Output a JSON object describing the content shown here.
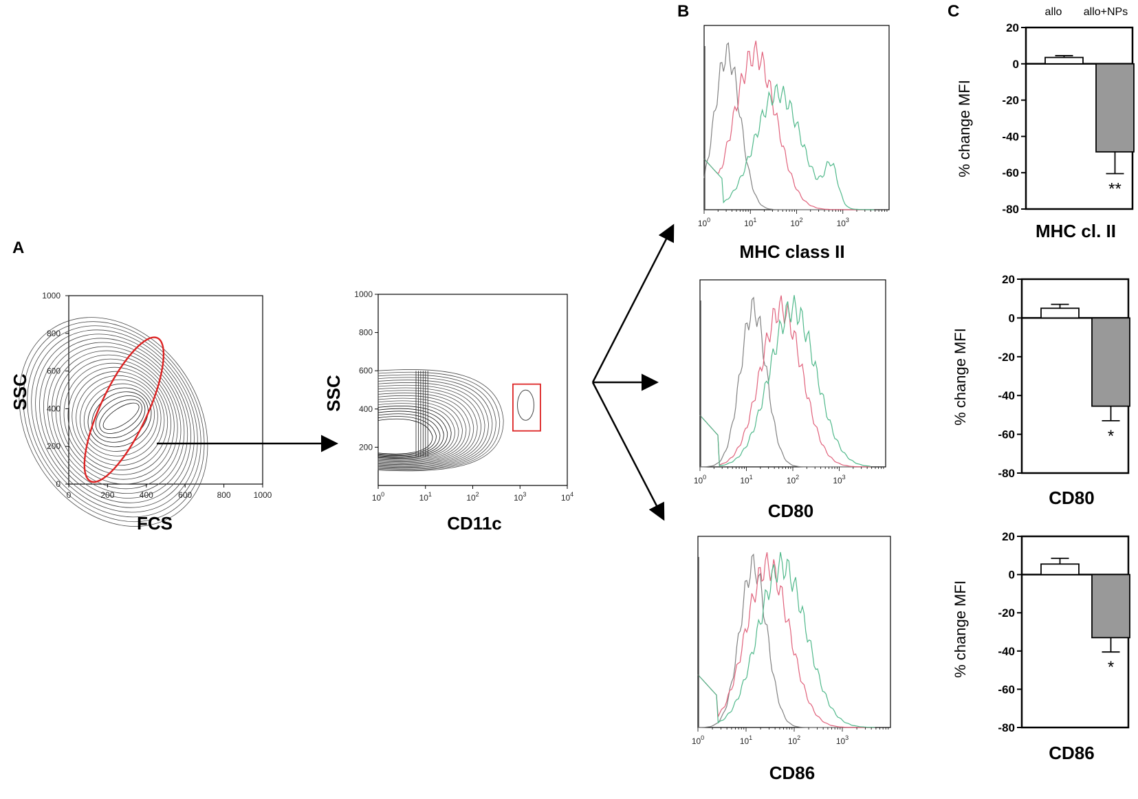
{
  "panel_labels": {
    "a": "A",
    "b": "B",
    "c": "C"
  },
  "chart_data": [
    {
      "id": "A1",
      "type": "contour",
      "title": "",
      "xlabel": "FCS",
      "ylabel": "SSC",
      "xlim": [
        0,
        1000
      ],
      "ylim": [
        0,
        1000
      ],
      "xticks": [
        "0",
        "200",
        "400",
        "600",
        "800",
        "1000"
      ],
      "yticks": [
        "0",
        "200",
        "400",
        "600",
        "800",
        "1000"
      ],
      "gate": {
        "shape": "ellipse",
        "color": "#dd2222"
      }
    },
    {
      "id": "A2",
      "type": "contour",
      "title": "",
      "xlabel": "CD11c",
      "ylabel": "SSC",
      "xscale": "log",
      "xlim": [
        1,
        10000
      ],
      "ylim": [
        0,
        1000
      ],
      "xticks": [
        "10",
        "10",
        "10",
        "10",
        "10"
      ],
      "xtick_exps": [
        "0",
        "1",
        "2",
        "3",
        "4"
      ],
      "yticks": [
        "200",
        "400",
        "600",
        "800",
        "1000"
      ],
      "gate": {
        "shape": "rectangle",
        "color": "#dd2222"
      }
    },
    {
      "id": "B",
      "type": "histogram",
      "xscale": "log",
      "xticks": [
        "10",
        "10",
        "10",
        "10"
      ],
      "xtick_exps": [
        "0",
        "1",
        "2",
        "3"
      ],
      "series_colors": {
        "isotype": "#808080",
        "allo_NPs": "#e0607a",
        "allo": "#4fb88a"
      },
      "panels": [
        {
          "marker": "MHC class II",
          "peaks_log10": {
            "isotype": 0.5,
            "allo_NPs": 1.1,
            "allo": 1.6
          }
        },
        {
          "marker": "CD80",
          "peaks_log10": {
            "isotype": 1.15,
            "allo_NPs": 1.75,
            "allo": 2.0
          }
        },
        {
          "marker": "CD86",
          "peaks_log10": {
            "isotype": 1.15,
            "allo_NPs": 1.45,
            "allo": 1.75
          }
        }
      ]
    },
    {
      "id": "C",
      "type": "bar",
      "categories": [
        "allo",
        "allo+NPs"
      ],
      "ylabel": "% change MFI",
      "ylim": [
        -80,
        20
      ],
      "yticks": [
        "20",
        "0",
        "-20",
        "-40",
        "-60",
        "-80"
      ],
      "panels": [
        {
          "xlabel": "MHC cl. II",
          "values": [
            3.5,
            -48.5
          ],
          "errors": [
            1.0,
            12.0
          ],
          "significance": [
            "",
            "**"
          ]
        },
        {
          "xlabel": "CD80",
          "values": [
            5.0,
            -45.5
          ],
          "errors": [
            2.0,
            7.5
          ],
          "significance": [
            "",
            "*"
          ]
        },
        {
          "xlabel": "CD86",
          "values": [
            5.5,
            -33.0
          ],
          "errors": [
            3.0,
            7.5
          ],
          "significance": [
            "",
            "*"
          ]
        }
      ],
      "bar_colors": [
        "#ffffff",
        "#999999"
      ]
    }
  ]
}
